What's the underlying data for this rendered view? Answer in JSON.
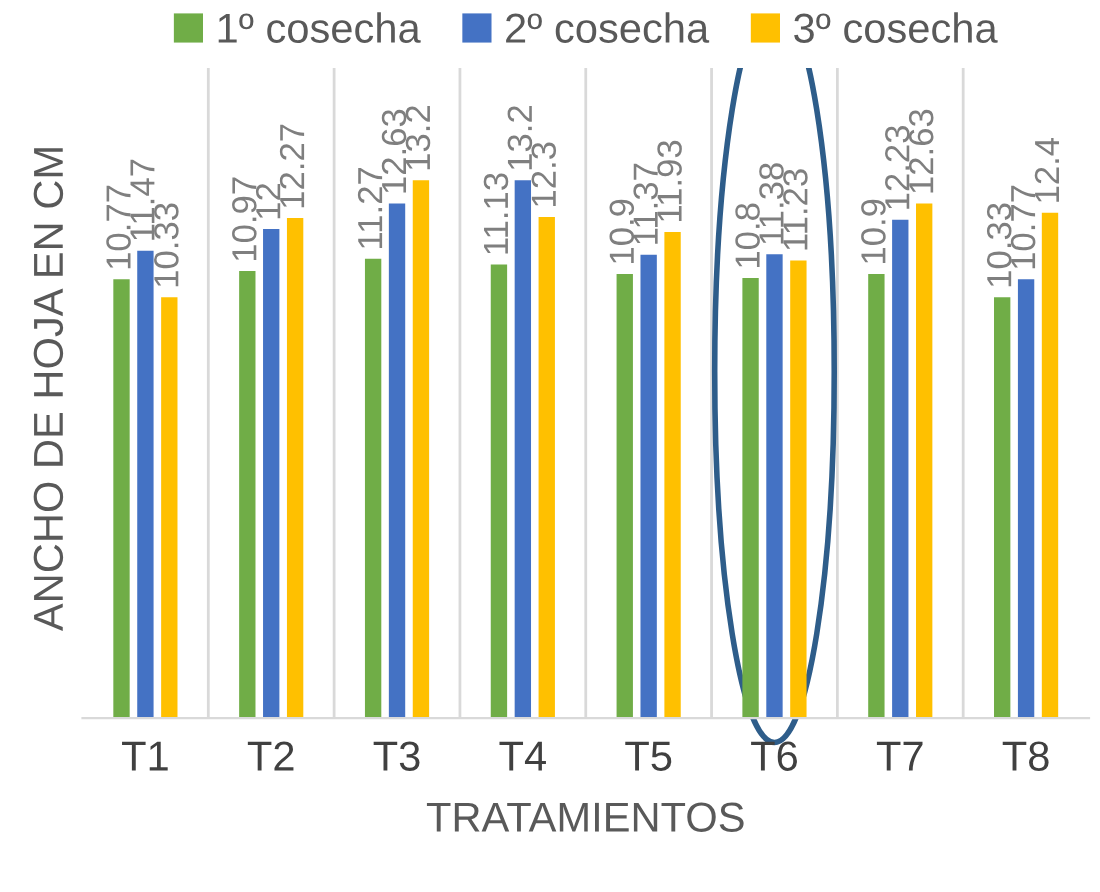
{
  "chart_data": {
    "type": "bar",
    "xlabel": "TRATAMIENTOS",
    "ylabel": "ANCHO DE HOJA EN CM",
    "categories": [
      "T1",
      "T2",
      "T3",
      "T4",
      "T5",
      "T6",
      "T7",
      "T8"
    ],
    "series": [
      {
        "name": "1º cosecha",
        "color": "#70ad47",
        "values": [
          10.77,
          10.97,
          11.27,
          11.13,
          10.9,
          10.8,
          10.9,
          10.33
        ]
      },
      {
        "name": "2º cosecha",
        "color": "#4472c4",
        "values": [
          11.47,
          12,
          12.63,
          13.2,
          11.37,
          11.38,
          12.23,
          10.77
        ]
      },
      {
        "name": "3º cosecha",
        "color": "#ffc000",
        "values": [
          10.33,
          12.27,
          13.2,
          12.3,
          11.93,
          11.23,
          12.63,
          12.4
        ]
      }
    ],
    "ylim": [
      0,
      16.2
    ],
    "tick_labels": "x",
    "grid": "x",
    "legend": "top",
    "data_labels": true
  }
}
